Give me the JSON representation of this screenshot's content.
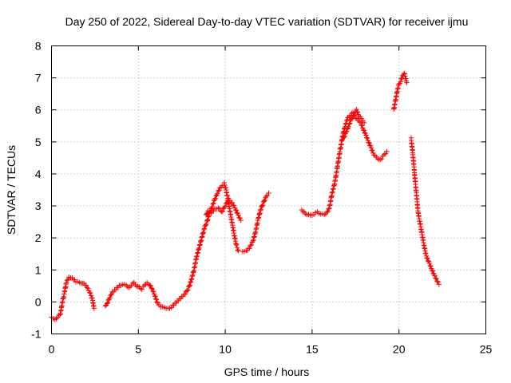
{
  "chart_data": {
    "type": "scatter",
    "title": "Day 250 of 2022, Sidereal Day-to-day VTEC variation (SDTVAR) for receiver ijmu",
    "xlabel": "GPS time / hours",
    "ylabel": "SDTVAR / TECUs",
    "xlim": [
      0,
      25
    ],
    "ylim": [
      -1,
      8
    ],
    "x_ticks": [
      0,
      5,
      10,
      15,
      20,
      25
    ],
    "y_ticks": [
      -1,
      0,
      1,
      2,
      3,
      4,
      5,
      6,
      7,
      8
    ],
    "x_tick_labels": [
      "0",
      "5",
      "10",
      "15",
      "20",
      "25"
    ],
    "y_tick_labels": [
      "-1",
      "0",
      "1",
      "2",
      "3",
      "4",
      "5",
      "6",
      "7",
      "8"
    ],
    "grid": true,
    "marker": "+",
    "color": "#ff0000",
    "series": [
      {
        "name": "SDTVAR",
        "segments": [
          [
            [
              0.0,
              -0.5
            ],
            [
              0.2,
              -0.55
            ],
            [
              0.35,
              -0.45
            ],
            [
              0.5,
              -0.4
            ],
            [
              0.6,
              -0.1
            ],
            [
              0.75,
              0.3
            ],
            [
              0.85,
              0.6
            ],
            [
              1.0,
              0.75
            ],
            [
              1.2,
              0.75
            ],
            [
              1.4,
              0.65
            ],
            [
              1.6,
              0.6
            ],
            [
              1.8,
              0.6
            ],
            [
              2.0,
              0.5
            ],
            [
              2.2,
              0.3
            ],
            [
              2.35,
              0.1
            ],
            [
              2.45,
              -0.2
            ]
          ],
          [
            [
              3.1,
              -0.15
            ],
            [
              3.2,
              -0.05
            ],
            [
              3.35,
              0.15
            ],
            [
              3.5,
              0.3
            ],
            [
              3.7,
              0.4
            ],
            [
              3.9,
              0.5
            ],
            [
              4.1,
              0.55
            ],
            [
              4.3,
              0.5
            ],
            [
              4.45,
              0.45
            ],
            [
              4.6,
              0.55
            ],
            [
              4.75,
              0.6
            ],
            [
              4.9,
              0.5
            ],
            [
              5.05,
              0.45
            ],
            [
              5.2,
              0.4
            ],
            [
              5.35,
              0.5
            ],
            [
              5.5,
              0.6
            ],
            [
              5.65,
              0.55
            ],
            [
              5.8,
              0.4
            ],
            [
              5.95,
              0.2
            ],
            [
              6.1,
              -0.05
            ],
            [
              6.3,
              -0.15
            ],
            [
              6.5,
              -0.2
            ],
            [
              6.7,
              -0.2
            ],
            [
              6.9,
              -0.15
            ],
            [
              7.1,
              -0.05
            ],
            [
              7.3,
              0.05
            ],
            [
              7.5,
              0.15
            ],
            [
              7.7,
              0.25
            ],
            [
              7.9,
              0.45
            ],
            [
              8.05,
              0.7
            ],
            [
              8.2,
              1.0
            ],
            [
              8.35,
              1.4
            ],
            [
              8.5,
              1.7
            ],
            [
              8.65,
              2.0
            ],
            [
              8.8,
              2.3
            ],
            [
              8.95,
              2.5
            ],
            [
              9.1,
              2.8
            ],
            [
              9.25,
              3.0
            ],
            [
              9.4,
              3.2
            ],
            [
              9.55,
              3.4
            ],
            [
              9.7,
              3.55
            ],
            [
              9.85,
              3.65
            ],
            [
              9.95,
              3.7
            ],
            [
              10.05,
              3.5
            ],
            [
              10.15,
              3.2
            ],
            [
              10.25,
              2.9
            ],
            [
              10.35,
              2.6
            ],
            [
              10.45,
              2.3
            ],
            [
              10.55,
              2.0
            ],
            [
              10.65,
              1.75
            ],
            [
              10.75,
              1.6
            ]
          ],
          [
            [
              8.9,
              2.7
            ],
            [
              9.0,
              2.85
            ],
            [
              9.2,
              2.8
            ],
            [
              9.4,
              2.9
            ],
            [
              9.6,
              2.95
            ],
            [
              9.8,
              2.8
            ],
            [
              10.0,
              3.0
            ],
            [
              10.2,
              3.2
            ],
            [
              10.4,
              3.1
            ],
            [
              10.6,
              2.9
            ],
            [
              10.75,
              2.7
            ],
            [
              10.9,
              2.55
            ]
          ],
          [
            [
              11.0,
              1.55
            ],
            [
              11.2,
              1.6
            ],
            [
              11.4,
              1.7
            ],
            [
              11.6,
              1.9
            ],
            [
              11.75,
              2.2
            ],
            [
              11.9,
              2.6
            ],
            [
              12.05,
              2.9
            ],
            [
              12.2,
              3.1
            ],
            [
              12.35,
              3.3
            ],
            [
              12.5,
              3.4
            ]
          ],
          [
            [
              14.4,
              2.85
            ],
            [
              14.55,
              2.8
            ],
            [
              14.7,
              2.75
            ],
            [
              14.9,
              2.7
            ],
            [
              15.1,
              2.75
            ],
            [
              15.3,
              2.8
            ],
            [
              15.5,
              2.75
            ],
            [
              15.7,
              2.7
            ],
            [
              15.85,
              2.8
            ],
            [
              16.0,
              2.95
            ],
            [
              16.15,
              3.4
            ],
            [
              16.3,
              3.7
            ],
            [
              16.45,
              4.2
            ],
            [
              16.6,
              4.7
            ],
            [
              16.7,
              5.0
            ],
            [
              16.8,
              5.3
            ],
            [
              16.9,
              5.5
            ],
            [
              17.05,
              5.75
            ],
            [
              17.2,
              5.85
            ],
            [
              17.35,
              5.9
            ],
            [
              17.5,
              5.75
            ],
            [
              17.65,
              5.65
            ],
            [
              17.8,
              5.6
            ],
            [
              17.95,
              5.4
            ],
            [
              18.1,
              5.2
            ],
            [
              18.25,
              5.0
            ],
            [
              18.4,
              4.8
            ],
            [
              18.55,
              4.6
            ],
            [
              18.7,
              4.5
            ],
            [
              18.85,
              4.45
            ],
            [
              19.0,
              4.5
            ],
            [
              19.15,
              4.6
            ],
            [
              19.3,
              4.7
            ]
          ],
          [
            [
              16.8,
              5.1
            ],
            [
              16.95,
              5.3
            ],
            [
              17.1,
              5.5
            ],
            [
              17.25,
              5.7
            ],
            [
              17.4,
              5.85
            ],
            [
              17.55,
              6.0
            ],
            [
              17.7,
              5.8
            ],
            [
              17.85,
              5.7
            ],
            [
              18.0,
              5.6
            ]
          ],
          [
            [
              19.7,
              6.0
            ],
            [
              19.8,
              6.3
            ],
            [
              19.9,
              6.6
            ],
            [
              20.0,
              6.8
            ],
            [
              20.1,
              6.9
            ],
            [
              20.2,
              7.05
            ],
            [
              20.3,
              7.15
            ],
            [
              20.4,
              6.95
            ],
            [
              20.45,
              6.85
            ]
          ],
          [
            [
              20.7,
              5.1
            ],
            [
              20.8,
              4.6
            ],
            [
              20.9,
              4.0
            ],
            [
              21.0,
              3.4
            ],
            [
              21.1,
              2.8
            ],
            [
              21.2,
              2.5
            ],
            [
              21.3,
              2.2
            ],
            [
              21.4,
              1.9
            ],
            [
              21.5,
              1.6
            ],
            [
              21.6,
              1.4
            ],
            [
              21.75,
              1.2
            ],
            [
              21.9,
              1.0
            ],
            [
              22.05,
              0.8
            ],
            [
              22.2,
              0.65
            ],
            [
              22.3,
              0.55
            ]
          ]
        ]
      }
    ]
  }
}
